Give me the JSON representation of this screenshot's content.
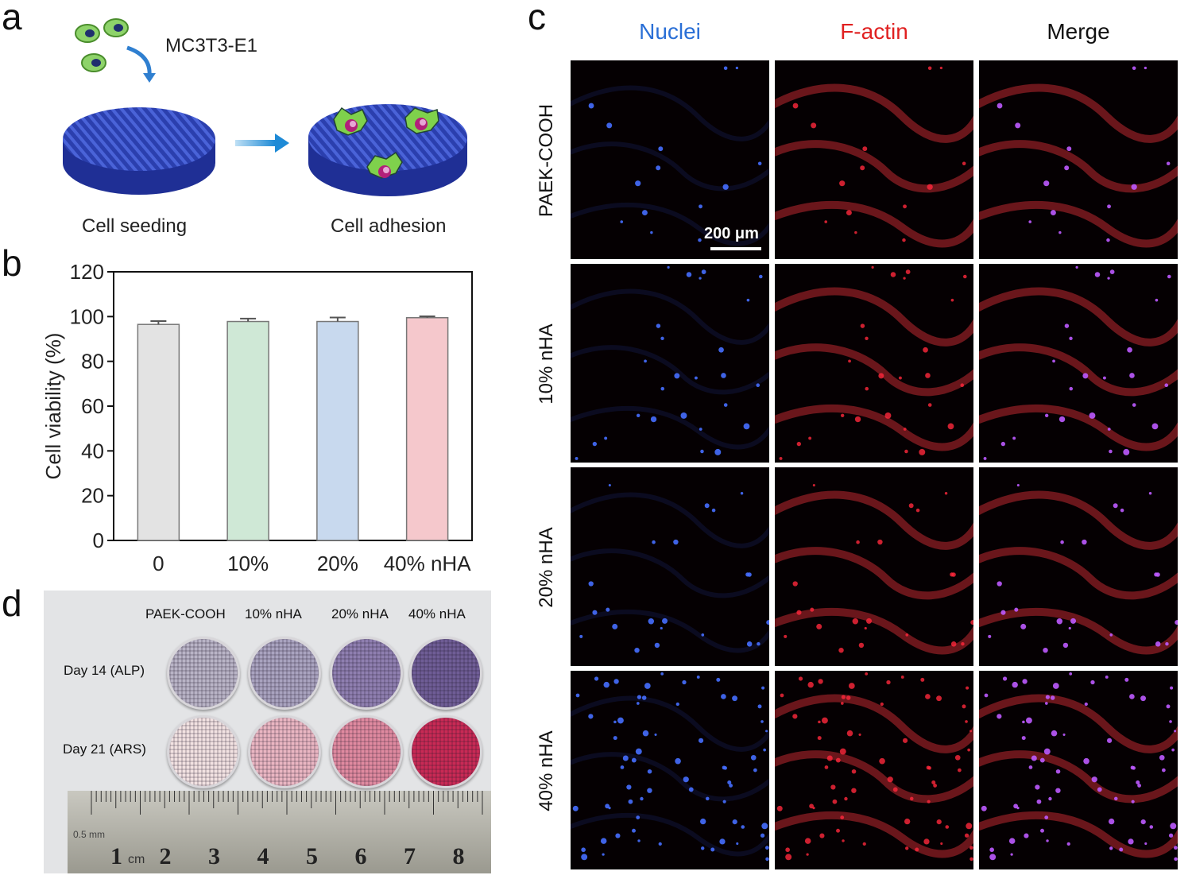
{
  "panels": {
    "a": {
      "letter": "a",
      "cell_line": "MC3T3-E1",
      "step1": "Cell seeding",
      "step2": "Cell adhesion"
    },
    "b": {
      "letter": "b"
    },
    "c": {
      "letter": "c",
      "columns": [
        "Nuclei",
        "F-actin",
        "Merge"
      ],
      "column_colors": [
        "#2a6fd6",
        "#e02020",
        "#111111"
      ],
      "rows": [
        "PAEK-COOH",
        "10% nHA",
        "20% nHA",
        "40% nHA"
      ],
      "scale_bar": "200 μm"
    },
    "d": {
      "letter": "d",
      "columns": [
        "PAEK-COOH",
        "10% nHA",
        "20% nHA",
        "40% nHA"
      ],
      "rows": [
        "Day 14 (ALP)",
        "Day 21 (ARS)"
      ],
      "ruler_units": [
        "0.5",
        "mm",
        "cm"
      ],
      "ruler_numbers": [
        "1",
        "2",
        "3",
        "4",
        "5",
        "6",
        "7",
        "8"
      ],
      "disk_colors": {
        "alp": [
          "#b9b4c6",
          "#a9a3bf",
          "#8f7fb0",
          "#6f5d96"
        ],
        "ars": [
          "#f2e2e2",
          "#eab6c2",
          "#e08aa0",
          "#c92a55"
        ]
      }
    }
  },
  "chart_data": {
    "type": "bar",
    "categories": [
      "0",
      "10%",
      "20%",
      "40% nHA"
    ],
    "values": [
      96.5,
      97.8,
      97.8,
      99.5
    ],
    "errors": [
      1.5,
      1.3,
      1.8,
      0.6
    ],
    "colors": [
      "#e3e3e3",
      "#cfe8d6",
      "#c8d9ee",
      "#f5c8cc"
    ],
    "ylabel": "Cell viability (%)",
    "xlabel": "",
    "ylim": [
      0,
      120
    ],
    "yticks": [
      0,
      20,
      40,
      60,
      80,
      100,
      120
    ],
    "grid": false
  }
}
